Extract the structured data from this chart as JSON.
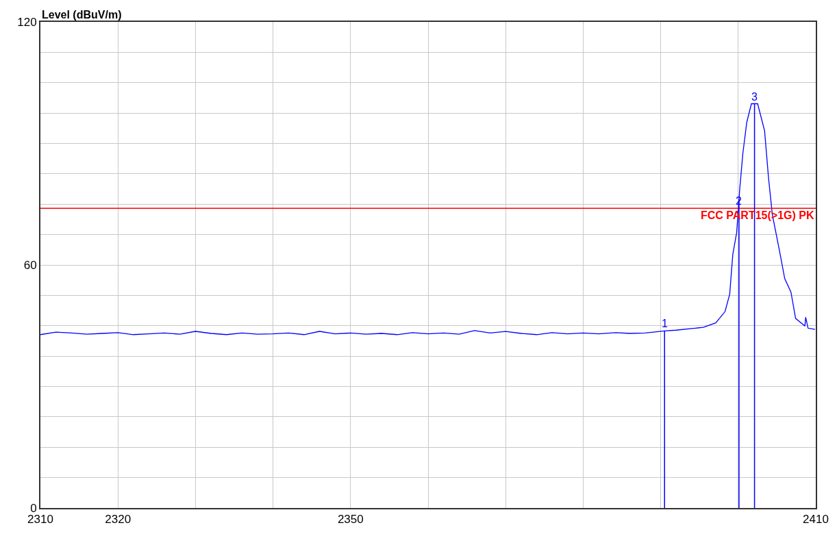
{
  "chart_data": {
    "type": "line",
    "ylabel": "Level (dBuV/m)",
    "x": [
      2310,
      2312,
      2314,
      2316,
      2318,
      2320,
      2322,
      2324,
      2326,
      2328,
      2330,
      2332,
      2334,
      2336,
      2338,
      2340,
      2342,
      2344,
      2346,
      2348,
      2350,
      2352,
      2354,
      2356,
      2358,
      2360,
      2362,
      2364,
      2366,
      2368,
      2370,
      2372,
      2374,
      2376,
      2378,
      2380,
      2382,
      2384.2,
      2386,
      2388,
      2390.5,
      2392,
      2394,
      2395.5,
      2397.1,
      2398.3,
      2398.9,
      2399.3,
      2399.8,
      2400.2,
      2400.6,
      2401.1,
      2401.7,
      2402.5,
      2403.4,
      2403.9,
      2404.4,
      2405.3,
      2406.0,
      2406.8,
      2407.4,
      2408.6,
      2408.7,
      2409.0,
      2409.9
    ],
    "series": [
      {
        "color": "#0000ff",
        "values": [
          42.8,
          43.4,
          43.2,
          42.9,
          43.1,
          43.3,
          42.8,
          43.0,
          43.2,
          42.9,
          43.6,
          43.1,
          42.8,
          43.2,
          42.9,
          43.0,
          43.2,
          42.8,
          43.6,
          43.0,
          43.2,
          42.9,
          43.1,
          42.8,
          43.3,
          43.0,
          43.2,
          42.9,
          43.8,
          43.2,
          43.6,
          43.1,
          42.8,
          43.3,
          43.0,
          43.2,
          43.0,
          43.3,
          43.1,
          43.2,
          43.7,
          43.9,
          44.3,
          44.6,
          45.7,
          48.5,
          52.8,
          62.6,
          68.0,
          78.9,
          87.6,
          95.2,
          99.8,
          99.8,
          93.1,
          81.6,
          72.4,
          63.7,
          56.6,
          53.3,
          46.8,
          44.9,
          47.1,
          44.4,
          44.1
        ]
      }
    ],
    "xlim": [
      2310,
      2410
    ],
    "xticks": [
      2310,
      2320,
      {
        "value": 2330,
        "label": null
      },
      {
        "value": 2340,
        "label": null
      },
      2350,
      {
        "value": 2360,
        "label": null
      },
      {
        "value": 2370,
        "label": null
      },
      {
        "value": 2380,
        "label": null
      },
      {
        "value": 2390,
        "label": null
      },
      {
        "value": 2400,
        "label": null
      },
      2410
    ],
    "ylim": [
      0,
      120
    ],
    "yticks": [
      0,
      {
        "value": 7.5,
        "label": null
      },
      {
        "value": 15,
        "label": null
      },
      {
        "value": 22.5,
        "label": null
      },
      {
        "value": 30,
        "label": null
      },
      {
        "value": 37.5,
        "label": null
      },
      {
        "value": 45,
        "label": null
      },
      {
        "value": 52.5,
        "label": null
      },
      60,
      {
        "value": 67.5,
        "label": null
      },
      {
        "value": 75,
        "label": null
      },
      {
        "value": 82.5,
        "label": null
      },
      {
        "value": 90,
        "label": null
      },
      {
        "value": 97.5,
        "label": null
      },
      {
        "value": 105,
        "label": null
      },
      {
        "value": 112.5,
        "label": null
      },
      120
    ],
    "ref_lines": [
      {
        "axis": "y",
        "value": 74,
        "label": "FCC PART15(>1G) PK",
        "color": "#ff0000"
      },
      {
        "axis": "x",
        "value": 2390.5,
        "color": "#0000ff"
      },
      {
        "axis": "x",
        "value": 2400.1,
        "color": "#0000ff"
      },
      {
        "axis": "x",
        "value": 2402.1,
        "color": "#0000ff"
      }
    ],
    "annotations": [
      {
        "text": "1",
        "x": 2390.5,
        "y": 43.7
      },
      {
        "text": "2",
        "x": 2400.1,
        "y": 74
      },
      {
        "text": "3",
        "x": 2402.1,
        "y": 99.8
      }
    ],
    "grid": true,
    "marker": "none",
    "line_style": "solid"
  }
}
